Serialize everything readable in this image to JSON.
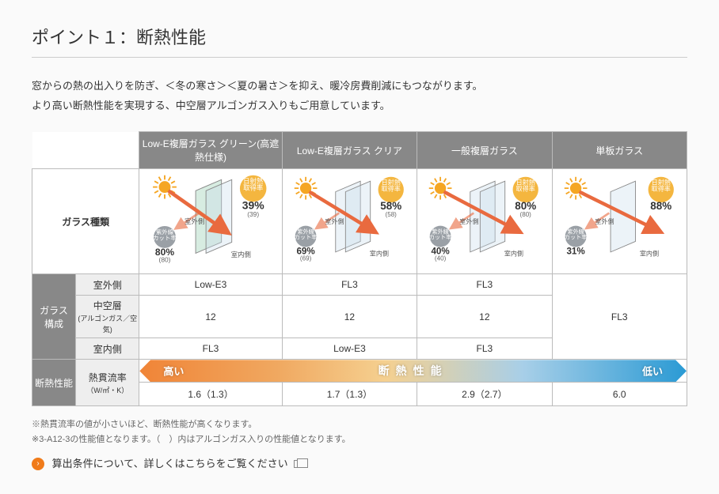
{
  "title": "ポイント１：断熱性能",
  "intro_line1": "窓からの熱の出入りを防ぎ、＜冬の寒さ＞＜夏の暑さ＞を抑え、暖冷房費削減にもつながります。",
  "intro_line2": "より高い断熱性能を実現する、中空層アルゴンガス入りもご用意しています。",
  "row_header_glass_type": "ガラス種類",
  "row_header_glass_comp": "ガラス\n構成",
  "row_header_insulation": "断熱性能",
  "sub_outdoor": "室外側",
  "sub_midlayer": "中空層",
  "sub_midlayer_note": "(アルゴンガス／空気)",
  "sub_indoor": "室内側",
  "sub_heat_rate": "熱貫流率",
  "sub_heat_rate_unit": "（W/㎡・K）",
  "columns": [
    {
      "name": "Low-E複層ガラス グリーン(高遮熱仕様)",
      "solar_label": "日射熱\n取得率",
      "solar_pct": "39%",
      "solar_sub": "(39)",
      "uv_label": "紫外線\nカット率",
      "uv_pct": "80%",
      "uv_sub": "(80)",
      "outdoor_label": "室外側",
      "indoor_label": "室内側",
      "comp_out": "Low-E3",
      "comp_mid": "12",
      "comp_in": "FL3",
      "heat_val": "1.6（1.3）",
      "panes": 2,
      "solar_color": "#f4b63f",
      "uv_color": "#9aa0a6",
      "arrow_len": 0.35,
      "pane_green": true
    },
    {
      "name": "Low-E複層ガラス クリア",
      "solar_label": "日射熱\n取得率",
      "solar_pct": "58%",
      "solar_sub": "(58)",
      "uv_label": "紫外線\nカット率",
      "uv_pct": "69%",
      "uv_sub": "(69)",
      "outdoor_label": "室外側",
      "indoor_label": "室内側",
      "comp_out": "FL3",
      "comp_mid": "12",
      "comp_in": "Low-E3",
      "heat_val": "1.7（1.3）",
      "panes": 2,
      "solar_color": "#f4b63f",
      "uv_color": "#9aa0a6",
      "arrow_len": 0.55,
      "pane_green": false
    },
    {
      "name": "一般複層ガラス",
      "solar_label": "日射熱\n取得率",
      "solar_pct": "80%",
      "solar_sub": "(80)",
      "uv_label": "紫外線\nカット率",
      "uv_pct": "40%",
      "uv_sub": "(40)",
      "outdoor_label": "室外側",
      "indoor_label": "室内側",
      "comp_out": "FL3",
      "comp_mid": "12",
      "comp_in": "FL3",
      "heat_val": "2.9（2.7）",
      "panes": 2,
      "solar_color": "#f4b63f",
      "uv_color": "#9aa0a6",
      "arrow_len": 0.78,
      "pane_green": false
    },
    {
      "name": "単板ガラス",
      "solar_label": "日射熱\n取得率",
      "solar_pct": "88%",
      "solar_sub": "",
      "uv_label": "紫外線\nカット率",
      "uv_pct": "31%",
      "uv_sub": "",
      "outdoor_label": "室外側",
      "indoor_label": "室内側",
      "comp_out": "",
      "comp_mid": "FL3",
      "comp_in": "",
      "heat_val": "6.0",
      "panes": 1,
      "solar_color": "#f4b63f",
      "uv_color": "#9aa0a6",
      "arrow_len": 0.9,
      "pane_green": false
    }
  ],
  "gradient": {
    "left": "高い",
    "mid": "断熱性能",
    "right": "低い",
    "stops": [
      "#f08437",
      "#f0a860",
      "#f5d090",
      "#a8cfe8",
      "#2a9ad4"
    ]
  },
  "note1": "※熱貫流率の値が小さいほど、断熱性能が高くなります。",
  "note2": "※3-A12-3の性能値となります。（　）内はアルゴンガス入りの性能値となります。",
  "link_text": "算出条件について、詳しくはこちらをご覧ください",
  "colors": {
    "header_bg": "#888888",
    "sub_bg": "#eeeeee",
    "border": "#bbbbbb",
    "accent": "#f07b1a",
    "sun_ray": "#f5a623",
    "arrow": "#e96a3f"
  }
}
